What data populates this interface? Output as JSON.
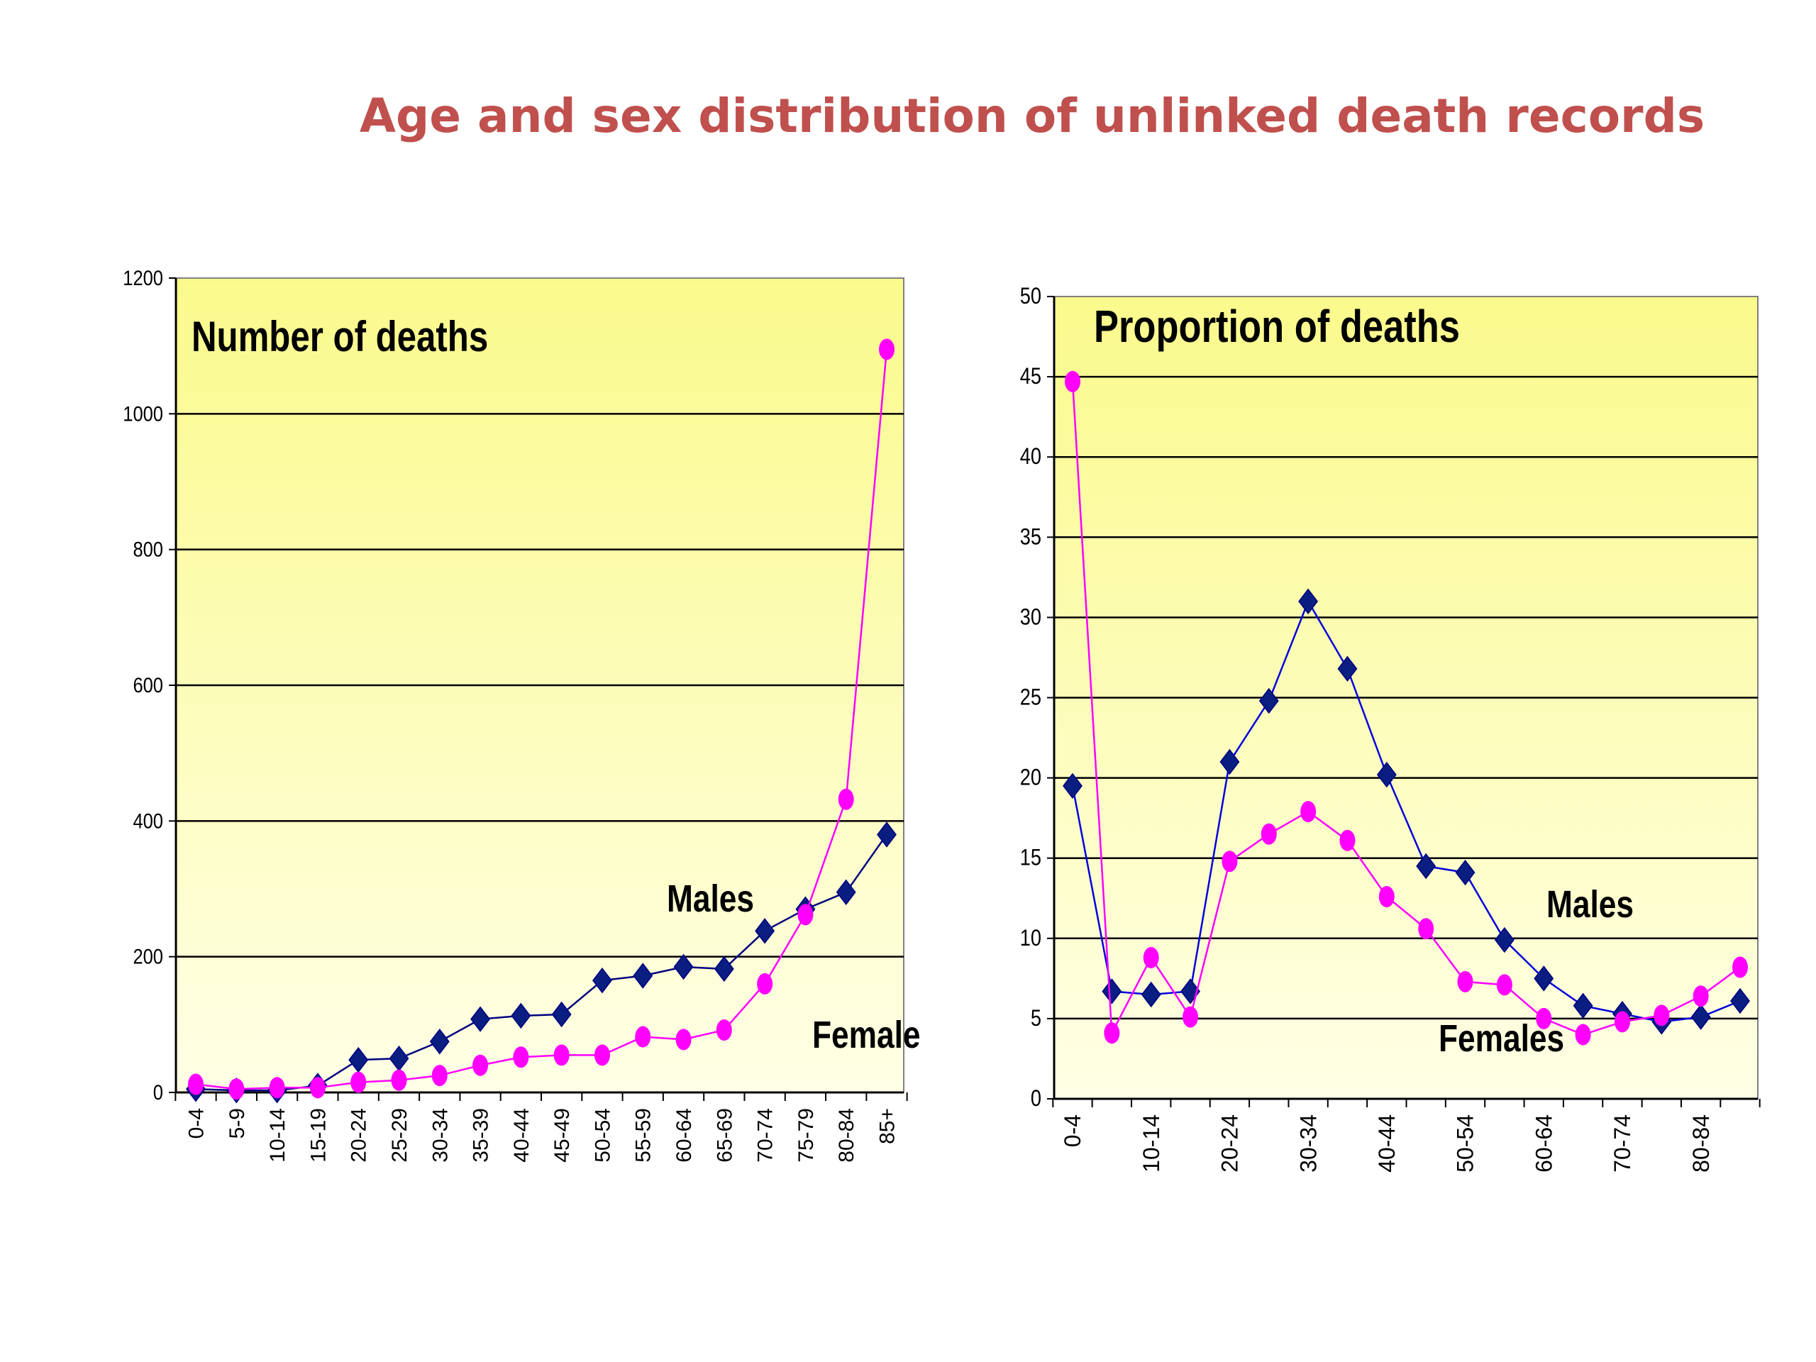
{
  "page": {
    "title": "Age and sex distribution of unlinked death records",
    "colors": {
      "title": "#c0504d",
      "males": "#000080",
      "males_marker": "#0a1e82",
      "females": "#ff00ff",
      "plot_bg_top": "#fafa8c",
      "plot_bg_bottom": "#ffffe6"
    }
  },
  "chart_data": [
    {
      "type": "line",
      "title": "Number of deaths",
      "ylim": [
        0,
        1200
      ],
      "yticks": [
        "0",
        "200",
        "400",
        "600",
        "800",
        "1000",
        "1200"
      ],
      "grid": true,
      "categories": [
        "0-4",
        "5-9",
        "10-14",
        "15-19",
        "20-24",
        "25-29",
        "30-34",
        "35-39",
        "40-44",
        "45-49",
        "50-54",
        "55-59",
        "60-64",
        "65-69",
        "70-74",
        "75-79",
        "80-84",
        "85+"
      ],
      "series": [
        {
          "name": "Males",
          "marker": "diamond",
          "values": [
            5,
            3,
            3,
            10,
            48,
            50,
            75,
            108,
            113,
            115,
            165,
            172,
            185,
            182,
            238,
            270,
            295,
            380
          ]
        },
        {
          "name": "Female",
          "marker": "circle",
          "values": [
            12,
            5,
            7,
            7,
            15,
            18,
            25,
            40,
            52,
            55,
            55,
            82,
            78,
            92,
            160,
            262,
            432,
            1095
          ]
        }
      ]
    },
    {
      "type": "line",
      "title": "Proportion of deaths",
      "ylim": [
        0,
        50
      ],
      "yticks": [
        "0",
        "5",
        "10",
        "15",
        "20",
        "25",
        "30",
        "35",
        "40",
        "45",
        "50"
      ],
      "grid": true,
      "categories": [
        "0-4",
        "5-9",
        "10-14",
        "15-19",
        "20-24",
        "25-29",
        "30-34",
        "35-39",
        "40-44",
        "45-49",
        "50-54",
        "55-59",
        "60-64",
        "65-69",
        "70-74",
        "75-79",
        "80-84",
        "85+"
      ],
      "category_labels": [
        "0-4",
        "",
        "10-14",
        "",
        "20-24",
        "",
        "30-34",
        "",
        "40-44",
        "",
        "50-54",
        "",
        "60-64",
        "",
        "70-74",
        "",
        "80-84",
        ""
      ],
      "series": [
        {
          "name": "Males",
          "marker": "diamond",
          "values": [
            19.5,
            6.7,
            6.5,
            6.7,
            21.0,
            24.8,
            31.0,
            26.8,
            20.2,
            14.5,
            14.1,
            9.9,
            7.5,
            5.8,
            5.3,
            4.8,
            5.1,
            6.1
          ]
        },
        {
          "name": "Females",
          "marker": "circle",
          "values": [
            44.7,
            4.1,
            8.8,
            5.1,
            14.8,
            16.5,
            17.9,
            16.1,
            12.6,
            10.6,
            7.3,
            7.1,
            5.0,
            4.0,
            4.8,
            5.2,
            6.4,
            8.2
          ]
        }
      ]
    }
  ]
}
